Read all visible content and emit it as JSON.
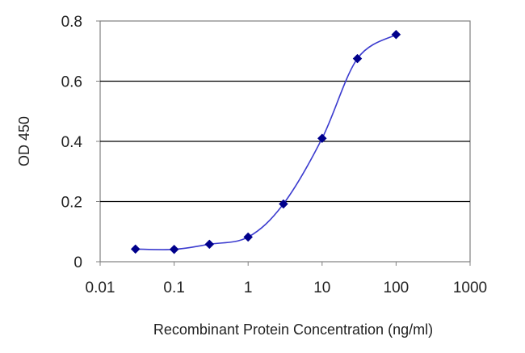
{
  "chart_data": {
    "type": "line",
    "title": "",
    "xlabel": "Recombinant Protein Concentration (ng/ml)",
    "ylabel": "OD 450",
    "x_scale": "log",
    "xlim": [
      0.01,
      1000
    ],
    "ylim": [
      0,
      0.8
    ],
    "x_ticks": [
      "0.01",
      "0.1",
      "1",
      "10",
      "100",
      "1000"
    ],
    "y_ticks": [
      "0",
      "0.2",
      "0.4",
      "0.6",
      "0.8"
    ],
    "grid": "horizontal",
    "legend": "none",
    "series": [
      {
        "x": [
          0.03,
          0.1,
          0.3,
          1,
          3,
          10,
          30,
          100
        ],
        "y": [
          0.042,
          0.041,
          0.058,
          0.082,
          0.192,
          0.41,
          0.675,
          0.755
        ],
        "color": "#00008b",
        "marker": "diamond"
      }
    ]
  }
}
